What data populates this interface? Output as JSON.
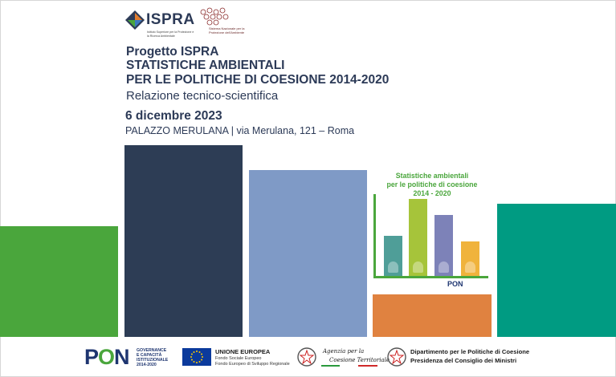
{
  "header": {
    "ispra": {
      "name": "ISPRA",
      "subtitle": "Istituto Superiore per la Protezione e la Ricerca Ambientale"
    },
    "snpa": {
      "text": "Sistema Nazionale per la Protezione dell'Ambiente"
    }
  },
  "title": {
    "project": "Progetto ISPRA",
    "line1": "STATISTICHE AMBIENTALI",
    "line2": "PER LE POLITICHE DI COESIONE 2014-2020",
    "subtitle": "Relazione tecnico-scientifica",
    "date": "6 dicembre 2023",
    "venue": "PALAZZO MERULANA | via Merulana, 121 – Roma"
  },
  "graphic": {
    "title_lines": [
      "Statistiche ambientali",
      "per le politiche di coesione",
      "2014 - 2020"
    ],
    "bars": [
      {
        "icon": "wind-turbine-icon",
        "level": 0.45,
        "color": "#4f9e98"
      },
      {
        "icon": "tree-icon",
        "level": 0.86,
        "color": "#a6c43a"
      },
      {
        "icon": "factory-smoke-icon",
        "level": 0.68,
        "color": "#7d82b8"
      },
      {
        "icon": "recycle-icon",
        "level": 0.38,
        "color": "#f0b33c"
      }
    ],
    "logo_text": "PON"
  },
  "colors": {
    "green": "#4aa63c",
    "navy": "#2d3d55",
    "blue": "#7f9ac6",
    "orange": "#e08240",
    "teal": "#009b82"
  },
  "footer": {
    "pon": {
      "word_p": "P",
      "word_o": "O",
      "word_n": "N",
      "lines": [
        "GOVERNANCE",
        "E CAPACITÀ",
        "ISTITUZIONALE",
        "2014-2020"
      ]
    },
    "eu": {
      "title": "UNIONE EUROPEA",
      "line1": "Fondo Sociale Europeo",
      "line2": "Fondo Europeo di Sviluppo Regionale"
    },
    "agency": {
      "line1": "Agenzia per la",
      "line2": "Coesione Territoriale"
    },
    "dipartimento": {
      "line1": "Dipartimento per le Politiche di Coesione",
      "line2": "Presidenza del Consiglio dei Ministri"
    }
  }
}
